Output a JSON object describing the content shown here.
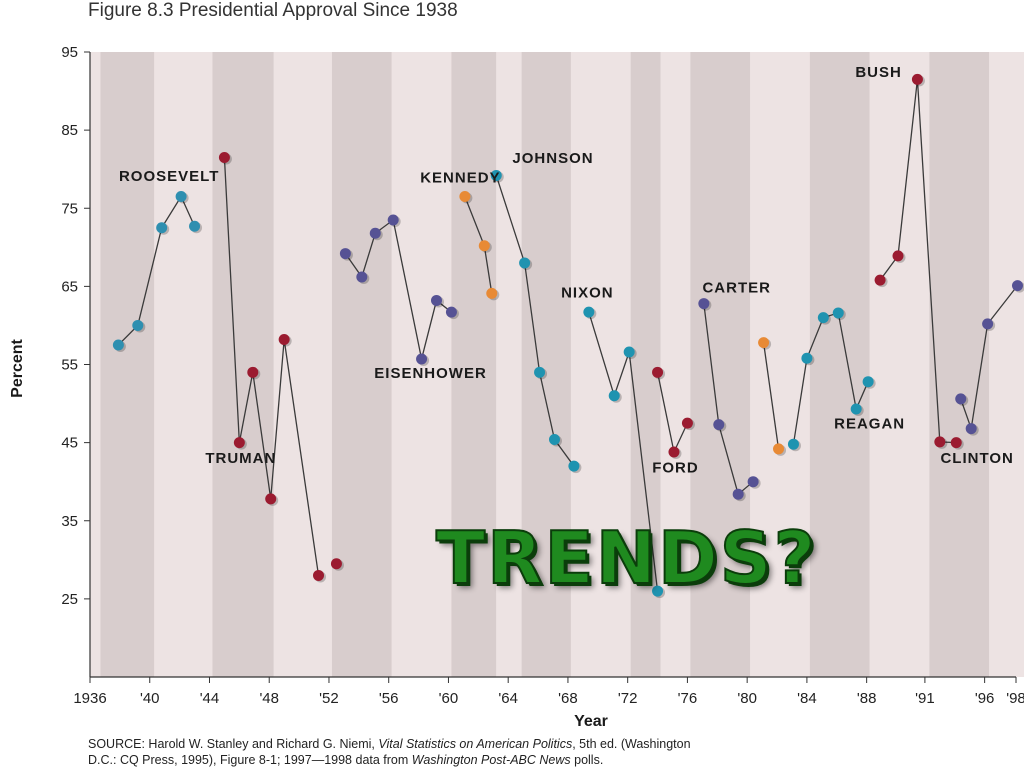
{
  "figure_title": "Figure 8.3  Presidential Approval Since 1938",
  "overlay_text": "TRENDS?",
  "source": {
    "part1": "SOURCE:  Harold W. Stanley and Richard G. Niemi, ",
    "title_italic": "Vital Statistics on American Politics",
    "part2": ", 5th ed. (Washington",
    "part3": "D.C.: CQ Press, 1995), Figure 8-1; 1997—1998 data from ",
    "paper_italic": "Washington Post-ABC News",
    "part4": " polls."
  },
  "colors": {
    "band_dark": "#d8cdcd",
    "band_light": "#ede3e3",
    "line": "#3a3a3a",
    "overlay": "#1f8a1f"
  },
  "chart_data": {
    "type": "line",
    "xlabel": "Year",
    "ylabel": "Percent",
    "ylim": [
      15,
      95
    ],
    "xlim": [
      1936,
      1998
    ],
    "y_ticks": [
      25,
      35,
      45,
      55,
      65,
      75,
      85,
      95
    ],
    "x_ticks": [
      {
        "value": 1936,
        "label": "1936"
      },
      {
        "value": 1940,
        "label": "'40"
      },
      {
        "value": 1944,
        "label": "'44"
      },
      {
        "value": 1948,
        "label": "'48"
      },
      {
        "value": 1952,
        "label": "'52"
      },
      {
        "value": 1956,
        "label": "'56"
      },
      {
        "value": 1960,
        "label": "'60"
      },
      {
        "value": 1964,
        "label": "'64"
      },
      {
        "value": 1968,
        "label": "'68"
      },
      {
        "value": 1972,
        "label": "'72"
      },
      {
        "value": 1976,
        "label": "'76"
      },
      {
        "value": 1980,
        "label": "'80"
      },
      {
        "value": 1984,
        "label": "'84"
      },
      {
        "value": 1988,
        "label": "'88"
      },
      {
        "value": 1991.9,
        "label": "'91"
      },
      {
        "value": 1995.9,
        "label": "'96"
      },
      {
        "value": 1998,
        "label": "'98"
      }
    ],
    "grid": false,
    "president_terms": [
      {
        "name": "ROOSEVELT",
        "start": 1936.7,
        "end": 1940.3
      },
      {
        "name": "ROOSEVELT",
        "start": 1940.3,
        "end": 1944.2
      },
      {
        "name": "TRUMAN",
        "start": 1944.2,
        "end": 1948.3
      },
      {
        "name": "TRUMAN",
        "start": 1948.3,
        "end": 1952.2
      },
      {
        "name": "EISENHOWER",
        "start": 1952.2,
        "end": 1956.2
      },
      {
        "name": "EISENHOWER",
        "start": 1956.2,
        "end": 1960.2
      },
      {
        "name": "KENNEDY",
        "start": 1960.2,
        "end": 1963.2
      },
      {
        "name": "JOHNSON",
        "start": 1963.2,
        "end": 1964.9
      },
      {
        "name": "JOHNSON",
        "start": 1964.9,
        "end": 1968.2
      },
      {
        "name": "NIXON",
        "start": 1968.2,
        "end": 1972.2
      },
      {
        "name": "NIXON",
        "start": 1972.2,
        "end": 1974.2
      },
      {
        "name": "FORD",
        "start": 1974.2,
        "end": 1976.2
      },
      {
        "name": "CARTER",
        "start": 1976.2,
        "end": 1980.2
      },
      {
        "name": "REAGAN",
        "start": 1980.2,
        "end": 1984.2
      },
      {
        "name": "REAGAN",
        "start": 1984.2,
        "end": 1988.2
      },
      {
        "name": "BUSH",
        "start": 1988.2,
        "end": 1992.2
      },
      {
        "name": "CLINTON",
        "start": 1992.2,
        "end": 1996.2
      },
      {
        "name": "CLINTON",
        "start": 1996.2,
        "end": 1998.6
      }
    ],
    "series": [
      {
        "name": "ROOSEVELT",
        "color": "#2e8fb0",
        "points": [
          [
            1937.9,
            57.5
          ],
          [
            1939.2,
            60
          ],
          [
            1940.8,
            72.5
          ],
          [
            1942.1,
            76.5
          ],
          [
            1943.0,
            72.7
          ]
        ]
      },
      {
        "name": "TRUMAN",
        "color": "#9b1b30",
        "points": [
          [
            1945.0,
            81.5
          ],
          [
            1946.0,
            45
          ],
          [
            1946.9,
            54
          ],
          [
            1948.1,
            37.8
          ],
          [
            1949.0,
            58.2
          ],
          [
            1951.3,
            28
          ]
        ]
      },
      {
        "name": "TRUMAN",
        "color": "#9b1b30",
        "points": [
          [
            1952.5,
            29.5
          ]
        ]
      },
      {
        "name": "EISENHOWER",
        "color": "#565294",
        "points": [
          [
            1953.1,
            69.2
          ],
          [
            1954.2,
            66.2
          ],
          [
            1955.1,
            71.8
          ],
          [
            1956.3,
            73.5
          ],
          [
            1958.2,
            55.7
          ],
          [
            1959.2,
            63.2
          ],
          [
            1960.2,
            61.7
          ]
        ]
      },
      {
        "name": "KENNEDY",
        "color": "#e88a35",
        "points": [
          [
            1961.1,
            76.5
          ],
          [
            1962.4,
            70.2
          ],
          [
            1962.9,
            64.1
          ]
        ]
      },
      {
        "name": "JOHNSON",
        "color": "#1f93b0",
        "points": [
          [
            1963.2,
            79.2
          ],
          [
            1965.1,
            68
          ],
          [
            1966.1,
            54
          ],
          [
            1967.1,
            45.4
          ],
          [
            1968.4,
            42
          ]
        ]
      },
      {
        "name": "NIXON",
        "color": "#1f93b0",
        "points": [
          [
            1969.4,
            61.7
          ],
          [
            1971.1,
            51
          ],
          [
            1972.1,
            56.6
          ],
          [
            1974.0,
            26
          ]
        ]
      },
      {
        "name": "FORD",
        "color": "#9b1b30",
        "points": [
          [
            1974.0,
            54
          ],
          [
            1975.1,
            43.8
          ],
          [
            1976.0,
            47.5
          ]
        ]
      },
      {
        "name": "CARTER",
        "color": "#565294",
        "points": [
          [
            1977.1,
            62.8
          ],
          [
            1978.1,
            47.3
          ],
          [
            1979.4,
            38.4
          ],
          [
            1980.4,
            40
          ]
        ]
      },
      {
        "name": "REAGAN",
        "color": "#e88a35",
        "points": [
          [
            1981.1,
            57.8
          ],
          [
            1982.1,
            44.2
          ]
        ]
      },
      {
        "name": "REAGAN",
        "color": "#1f93b0",
        "points": [
          [
            1983.1,
            44.8
          ],
          [
            1984.0,
            55.8
          ],
          [
            1985.1,
            61
          ],
          [
            1986.1,
            61.6
          ],
          [
            1987.3,
            49.3
          ],
          [
            1988.1,
            52.8
          ]
        ]
      },
      {
        "name": "BUSH",
        "color": "#9b1b30",
        "points": [
          [
            1988.9,
            65.8
          ],
          [
            1990.1,
            68.9
          ],
          [
            1991.4,
            91.5
          ],
          [
            1992.9,
            45.1
          ],
          [
            1994.0,
            45
          ]
        ]
      },
      {
        "name": "CLINTON",
        "color": "#565294",
        "points": [
          [
            1994.3,
            50.6
          ],
          [
            1995.0,
            46.8
          ],
          [
            1996.1,
            60.2
          ],
          [
            1998.1,
            65.1
          ]
        ]
      }
    ],
    "annotations": [
      {
        "text": "ROOSEVELT",
        "x": 1941.3,
        "y": 78.5
      },
      {
        "text": "TRUMAN",
        "x": 1946.1,
        "y": 42.4
      },
      {
        "text": "EISENHOWER",
        "x": 1958.8,
        "y": 53.3
      },
      {
        "text": "KENNEDY",
        "x": 1960.8,
        "y": 78.3
      },
      {
        "text": "JOHNSON",
        "x": 1967.0,
        "y": 80.8
      },
      {
        "text": "NIXON",
        "x": 1969.3,
        "y": 63.6
      },
      {
        "text": "FORD",
        "x": 1975.2,
        "y": 41.2
      },
      {
        "text": "CARTER",
        "x": 1979.3,
        "y": 64.2
      },
      {
        "text": "REAGAN",
        "x": 1988.2,
        "y": 46.8
      },
      {
        "text": "BUSH",
        "x": 1988.8,
        "y": 91.8
      },
      {
        "text": "CLINTON",
        "x": 1995.4,
        "y": 42.4
      }
    ]
  }
}
